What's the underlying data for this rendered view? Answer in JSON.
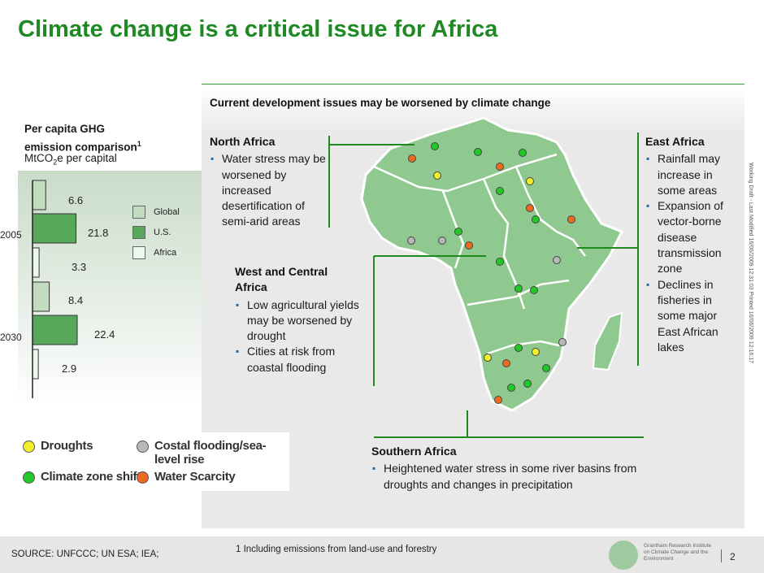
{
  "title": "Climate change is a critical issue for Africa",
  "panel_heading": "Current development issues may be worsened by climate change",
  "chart": {
    "heading_line1": "Per capita GHG",
    "heading_line2": "emission comparison",
    "heading_sup": "1",
    "unit_pre": "MtCO",
    "unit_sub": "2",
    "unit_post": "e per capital",
    "legend": [
      "Global",
      "U.S.",
      "Africa"
    ],
    "colors": {
      "global": "#c2dcc0",
      "us": "#58a85c",
      "africa": "#eef7ee"
    }
  },
  "chart_data": {
    "type": "bar",
    "categories": [
      "2005",
      "2030"
    ],
    "series": [
      {
        "name": "Global",
        "values": [
          6.6,
          8.4
        ]
      },
      {
        "name": "U.S.",
        "values": [
          21.8,
          22.4
        ]
      },
      {
        "name": "Africa",
        "values": [
          3.3,
          2.9
        ]
      }
    ],
    "labels": {
      "2005": [
        "6.6",
        "21.8",
        "3.3"
      ],
      "2030": [
        "8.4",
        "22.4",
        "2.9"
      ]
    }
  },
  "regions": {
    "north": {
      "title": "North Africa",
      "bullets": [
        "Water stress may be worsened by increased desertification of semi-arid areas"
      ]
    },
    "west": {
      "title_line1": "West and Central",
      "title_line2": "Africa",
      "bullets": [
        "Low agricultural yields may be worsened by drought",
        " Cities at risk from coastal flooding"
      ]
    },
    "east": {
      "title": "East Africa",
      "bullets": [
        "Rainfall may increase in some areas",
        "Expansion of vector-borne disease transmission zone",
        "Declines in fisheries in some major East African lakes"
      ]
    },
    "south": {
      "title": "Southern Africa",
      "bullets": [
        "Heightened water stress in some river basins from droughts and changes in precipitation"
      ]
    }
  },
  "legend": {
    "droughts": "Droughts",
    "climate_zone": "Climate zone shifts",
    "coastal": "Costal flooding/sea-level rise",
    "water": "Water Scarcity"
  },
  "marker_colors": {
    "drought": "#f2ee2a",
    "climate": "#22c826",
    "coastal": "#b8b8b8",
    "water": "#ec6a20"
  },
  "map_color": "#8fc98f",
  "footer": {
    "source": "SOURCE:  UNFCCC;  UN ESA; IEA;",
    "footnote": "1 Including emissions from land-use and forestry",
    "page": "2",
    "logo_text": "Grantham Research Institute on Climate Change and the Environment"
  },
  "side_note": "Working Draft - Last Modified 16/06/2009 12:31:03    Printed 16/06/2009 12:16:17"
}
